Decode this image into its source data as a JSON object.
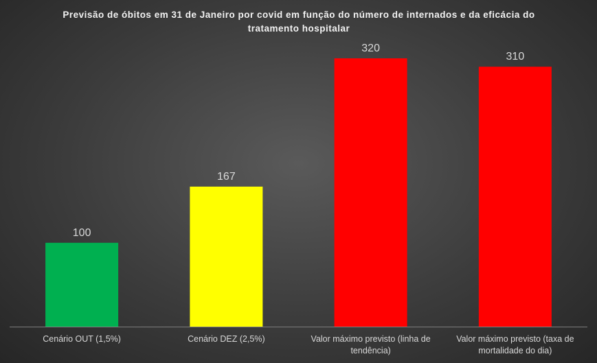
{
  "chart_data": {
    "type": "bar",
    "title": "Previsão de óbitos em 31 de Janeiro por covid em função do número de internados e da eficácia do tratamento hospitalar",
    "categories": [
      "Cenário OUT (1,5%)",
      "Cenário DEZ (2,5%)",
      "Valor máximo previsto (linha de tendência)",
      "Valor máximo previsto (taxa de mortalidade do dia)"
    ],
    "values": [
      100,
      167,
      320,
      310
    ],
    "colors": [
      "#00b050",
      "#ffff00",
      "#ff0000",
      "#ff0000"
    ]
  }
}
